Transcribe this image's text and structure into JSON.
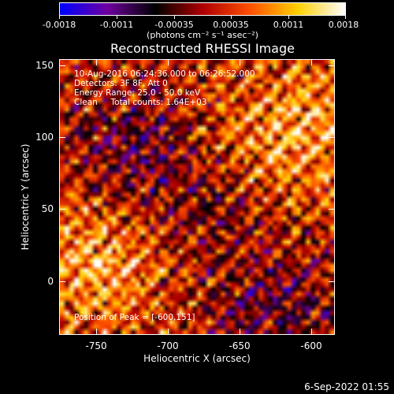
{
  "colorbar": {
    "tick_labels": [
      "-0.0018",
      "-0.0011",
      "-0.00035",
      "0.00035",
      "0.0011",
      "0.0018"
    ],
    "unit": "(photons cm⁻² s⁻¹ asec⁻²)",
    "colors": [
      "#0000ff",
      "#7000a0",
      "#000000",
      "#b00000",
      "#ff5000",
      "#ffd000",
      "#ffffff"
    ]
  },
  "chart_data": {
    "type": "heatmap",
    "title": "Reconstructed RHESSI Image",
    "xlabel": "Heliocentric X (arcsec)",
    "ylabel": "Heliocentric Y (arcsec)",
    "xlim": [
      -775,
      -588
    ],
    "ylim": [
      -37,
      155
    ],
    "xticks": [
      -750,
      -700,
      -650,
      -600
    ],
    "xtick_labels": [
      "-750",
      "-700",
      "-650",
      "-600"
    ],
    "yticks": [
      0,
      50,
      100,
      150
    ],
    "ytick_labels": [
      "0",
      "50",
      "100",
      "150"
    ],
    "value_range": [
      -0.0018,
      0.0018
    ],
    "peak": [
      -600,
      151
    ]
  },
  "info": {
    "time_range": "10-Aug-2016 06:24:36.000 to 06:26:52.000",
    "detectors": "Detectors: 3F 8F, Att 0",
    "energy": "Energy Range: 25.0 - 50.0 keV",
    "method_counts": "Clean     Total counts: 1.64E+03",
    "peak_position": "Position of Peak = [-600,151]"
  },
  "footer": {
    "datestamp": "6-Sep-2022 01:55"
  }
}
